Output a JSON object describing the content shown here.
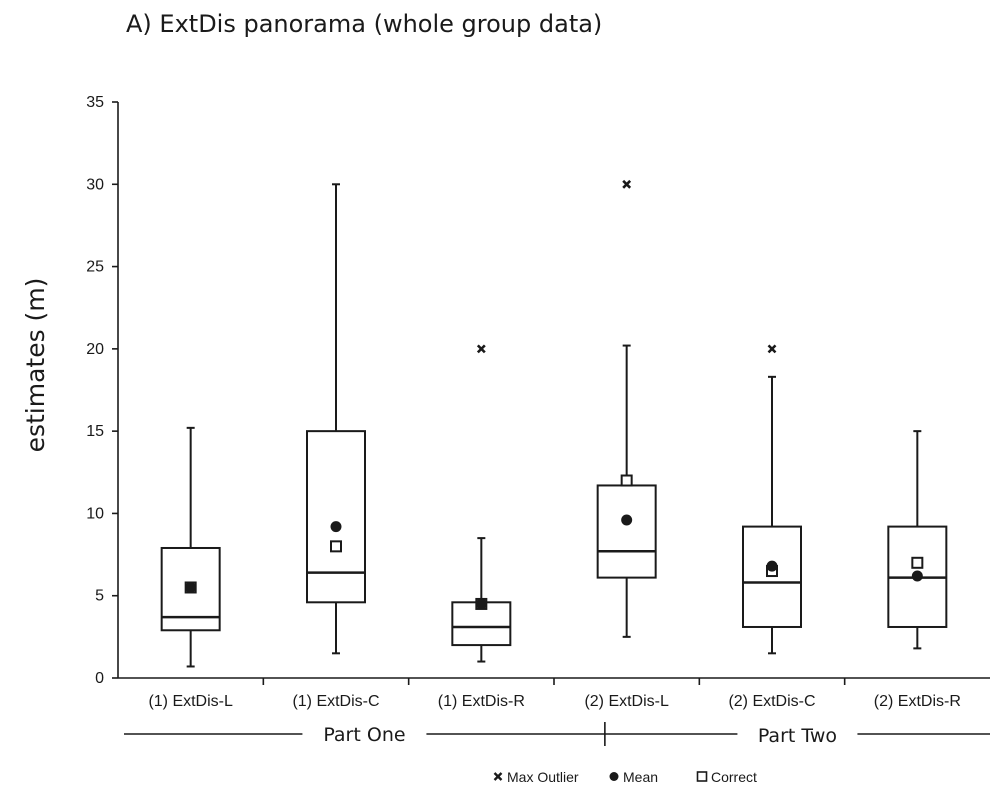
{
  "chart_data": {
    "type": "box",
    "title": "A) ExtDis panorama (whole group data)",
    "ylabel": "estimates (m)",
    "ylim": [
      0,
      35
    ],
    "yticks": [
      0,
      5,
      10,
      15,
      20,
      25,
      30,
      35
    ],
    "categories": [
      "(1) ExtDis-L",
      "(1) ExtDis-C",
      "(1) ExtDis-R",
      "(2) ExtDis-L",
      "(2) ExtDis-C",
      "(2) ExtDis-R"
    ],
    "groups": [
      {
        "label": "Part One",
        "categories": [
          "(1) ExtDis-L",
          "(1) ExtDis-C",
          "(1) ExtDis-R"
        ]
      },
      {
        "label": "Part Two",
        "categories": [
          "(2) ExtDis-L",
          "(2) ExtDis-C",
          "(2) ExtDis-R"
        ]
      }
    ],
    "boxes": [
      {
        "category": "(1) ExtDis-L",
        "min": 0.7,
        "q1": 2.9,
        "median": 3.7,
        "q3": 7.9,
        "max": 15.2,
        "mean": 5.5,
        "correct": 5.5,
        "max_outlier": null
      },
      {
        "category": "(1) ExtDis-C",
        "min": 1.5,
        "q1": 4.6,
        "median": 6.4,
        "q3": 15.0,
        "max": 30.0,
        "mean": 9.2,
        "correct": 8.0,
        "max_outlier": null
      },
      {
        "category": "(1) ExtDis-R",
        "min": 1.0,
        "q1": 2.0,
        "median": 3.1,
        "q3": 4.6,
        "max": 8.5,
        "mean": 4.5,
        "correct": 4.5,
        "max_outlier": 20
      },
      {
        "category": "(2) ExtDis-L",
        "min": 2.5,
        "q1": 6.1,
        "median": 7.7,
        "q3": 11.7,
        "max": 20.2,
        "mean": 9.6,
        "correct": 12.0,
        "max_outlier": 30
      },
      {
        "category": "(2) ExtDis-C",
        "min": 1.5,
        "q1": 3.1,
        "median": 5.8,
        "q3": 9.2,
        "max": 18.3,
        "mean": 6.8,
        "correct": 6.5,
        "max_outlier": 20
      },
      {
        "category": "(2) ExtDis-R",
        "min": 1.8,
        "q1": 3.1,
        "median": 6.1,
        "q3": 9.2,
        "max": 15.0,
        "mean": 6.2,
        "correct": 7.0,
        "max_outlier": null
      }
    ],
    "legend": {
      "position": "bottom-right",
      "items": [
        {
          "key": "max_outlier",
          "label": "Max Outlier",
          "marker": "x-icon"
        },
        {
          "key": "mean",
          "label": "Mean",
          "marker": "filled-circle"
        },
        {
          "key": "correct",
          "label": "Correct",
          "marker": "open-square"
        }
      ]
    }
  }
}
